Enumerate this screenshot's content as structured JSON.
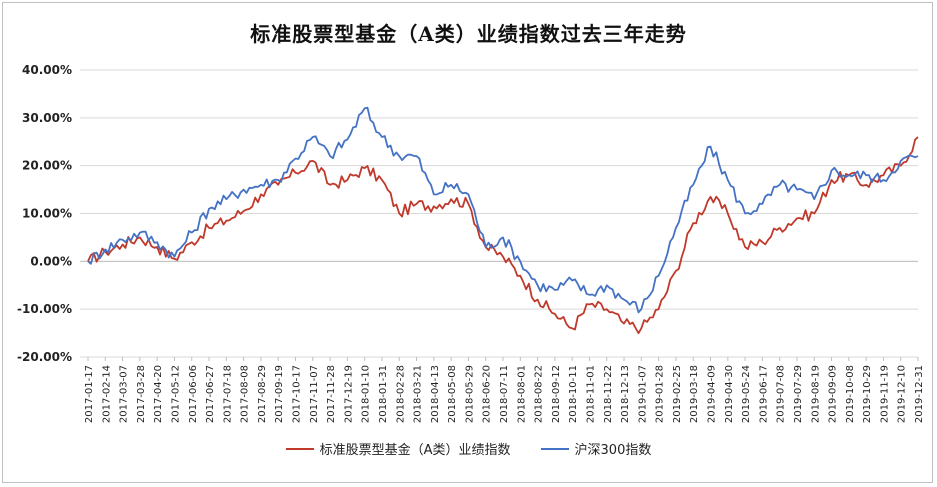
{
  "chart_data": {
    "type": "line",
    "title": "标准股票型基金（A类）业绩指数过去三年走势",
    "ylim": [
      -0.2,
      0.4
    ],
    "y_ticks": [
      "40.00%",
      "30.00%",
      "20.00%",
      "10.00%",
      "0.00%",
      "-10.00%",
      "-20.00%"
    ],
    "y_tick_values": [
      0.4,
      0.3,
      0.2,
      0.1,
      0.0,
      -0.1,
      -0.2
    ],
    "grid": true,
    "legend_position": "bottom",
    "x_ticks": [
      "2017-01-17",
      "2017-02-14",
      "2017-03-07",
      "2017-03-28",
      "2017-04-20",
      "2017-05-12",
      "2017-06-06",
      "2017-06-27",
      "2017-07-18",
      "2017-08-08",
      "2017-08-29",
      "2017-09-19",
      "2017-10-17",
      "2017-11-07",
      "2017-11-28",
      "2017-12-19",
      "2018-01-10",
      "2018-01-31",
      "2018-02-28",
      "2018-03-21",
      "2018-04-13",
      "2018-05-08",
      "2018-05-29",
      "2018-06-20",
      "2018-07-11",
      "2018-08-01",
      "2018-08-22",
      "2018-09-12",
      "2018-10-11",
      "2018-11-01",
      "2018-11-22",
      "2018-12-13",
      "2019-01-07",
      "2019-01-28",
      "2019-02-25",
      "2019-03-18",
      "2019-04-09",
      "2019-04-30",
      "2019-05-24",
      "2019-06-17",
      "2019-07-08",
      "2019-07-29",
      "2019-08-19",
      "2019-09-09",
      "2019-10-08",
      "2019-10-29",
      "2019-11-19",
      "2019-12-10",
      "2019-12-31"
    ],
    "series": [
      {
        "name": "标准股票型基金（A类）业绩指数",
        "color": "#c0392b",
        "values": [
          0.0,
          0.02,
          0.035,
          0.05,
          0.03,
          0.005,
          0.04,
          0.07,
          0.085,
          0.105,
          0.14,
          0.16,
          0.185,
          0.21,
          0.16,
          0.17,
          0.195,
          0.17,
          0.1,
          0.12,
          0.115,
          0.13,
          0.12,
          0.03,
          0.01,
          -0.03,
          -0.08,
          -0.11,
          -0.14,
          -0.09,
          -0.1,
          -0.13,
          -0.14,
          -0.1,
          -0.02,
          0.08,
          0.135,
          0.1,
          0.03,
          0.04,
          0.07,
          0.09,
          0.1,
          0.17,
          0.18,
          0.16,
          0.18,
          0.2,
          0.26
        ]
      },
      {
        "name": "沪深300指数",
        "color": "#4472c4",
        "values": [
          0.0,
          0.025,
          0.045,
          0.06,
          0.04,
          0.01,
          0.06,
          0.11,
          0.13,
          0.15,
          0.16,
          0.17,
          0.215,
          0.26,
          0.22,
          0.255,
          0.32,
          0.26,
          0.22,
          0.22,
          0.14,
          0.16,
          0.14,
          0.03,
          0.05,
          0.0,
          -0.05,
          -0.06,
          -0.04,
          -0.07,
          -0.05,
          -0.08,
          -0.1,
          -0.03,
          0.07,
          0.16,
          0.24,
          0.17,
          0.1,
          0.12,
          0.16,
          0.15,
          0.13,
          0.19,
          0.18,
          0.18,
          0.17,
          0.21,
          0.22
        ]
      }
    ]
  }
}
